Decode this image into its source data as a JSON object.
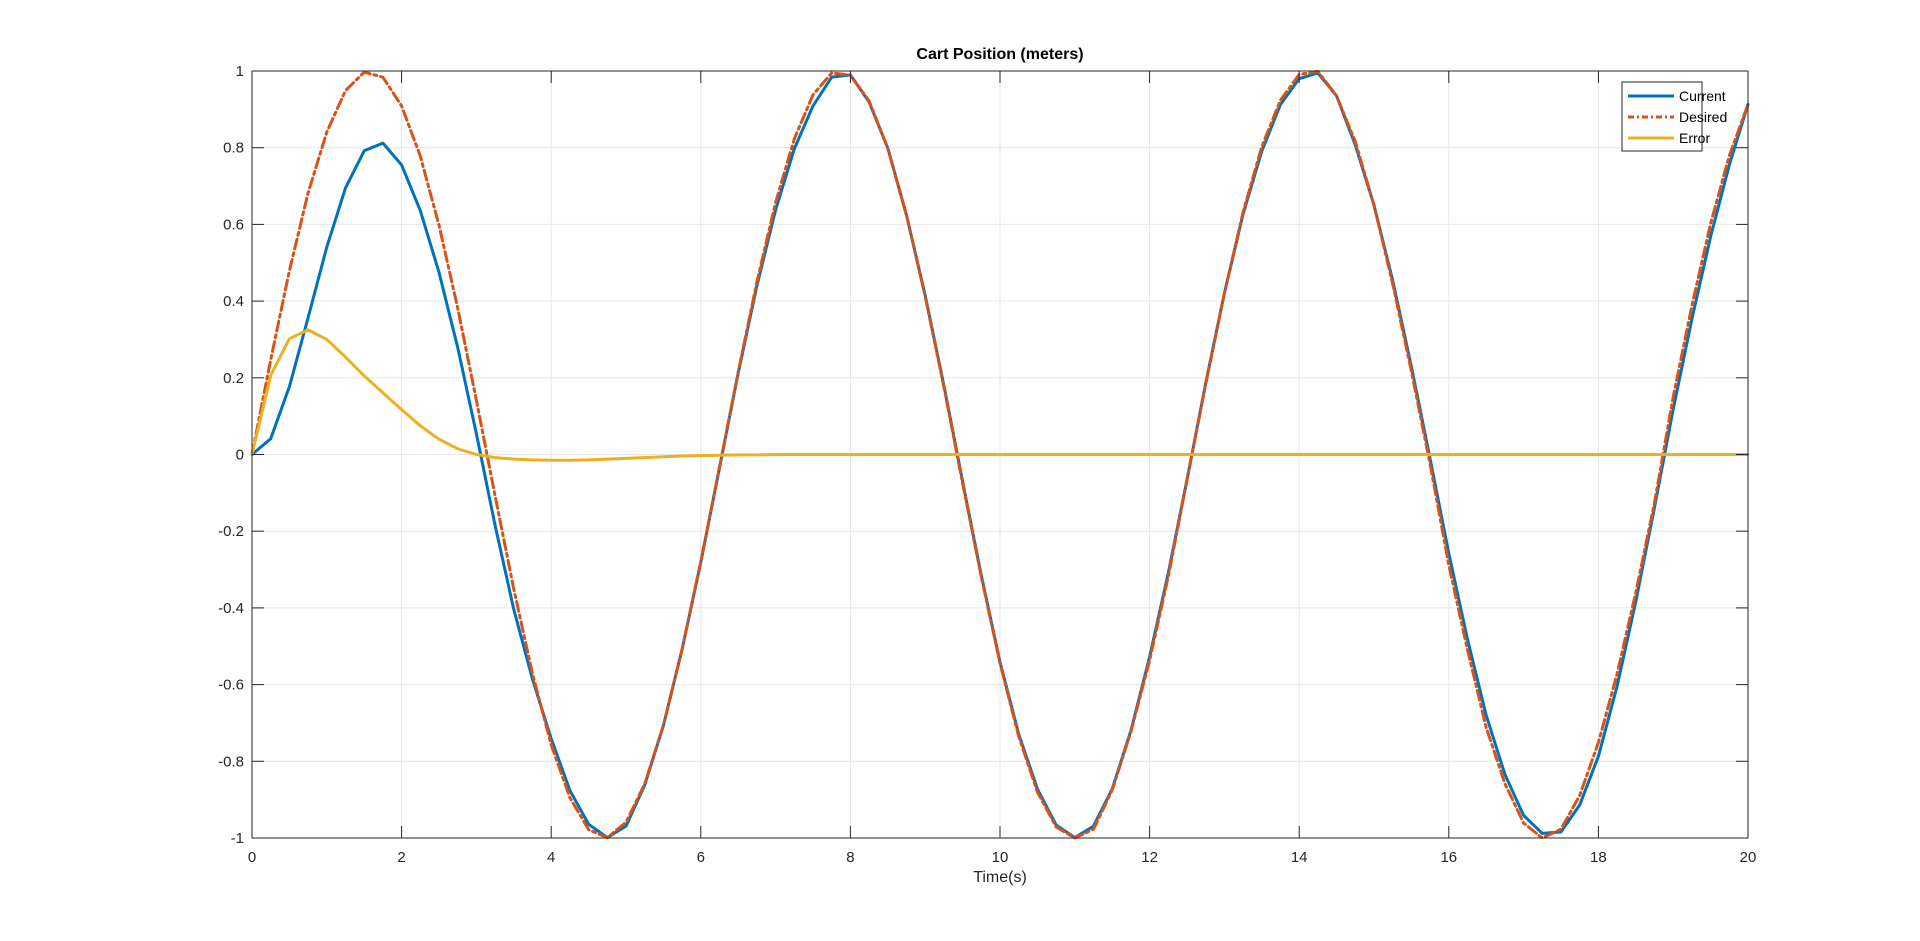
{
  "chart_data": {
    "type": "line",
    "title": "Cart Position (meters)",
    "xlabel": "Time(s)",
    "ylabel": "",
    "xlim": [
      0,
      20
    ],
    "ylim": [
      -1,
      1
    ],
    "x_ticks": [
      "0",
      "2",
      "4",
      "6",
      "8",
      "10",
      "12",
      "14",
      "16",
      "18",
      "20"
    ],
    "y_ticks": [
      "-1",
      "-0.8",
      "-0.6",
      "-0.4",
      "-0.2",
      "0",
      "0.2",
      "0.4",
      "0.6",
      "0.8",
      "1"
    ],
    "grid": true,
    "legend_position": "top-right",
    "x": [
      0,
      0.25,
      0.5,
      0.75,
      1.0,
      1.25,
      1.5,
      1.75,
      2.0,
      2.25,
      2.5,
      2.75,
      3.0,
      3.25,
      3.5,
      3.75,
      4.0,
      4.25,
      4.5,
      4.75,
      5.0,
      5.25,
      5.5,
      5.75,
      6.0,
      6.25,
      6.5,
      6.75,
      7.0,
      7.25,
      7.5,
      7.75,
      8.0,
      8.25,
      8.5,
      8.75,
      9.0,
      9.25,
      9.5,
      9.75,
      10.0,
      10.25,
      10.5,
      10.75,
      11.0,
      11.25,
      11.5,
      11.75,
      12.0,
      12.25,
      12.5,
      12.75,
      13.0,
      13.25,
      13.5,
      13.75,
      14.0,
      14.25,
      14.5,
      14.75,
      15.0,
      15.25,
      15.5,
      15.75,
      16.0,
      16.25,
      16.5,
      16.75,
      17.0,
      17.25,
      17.5,
      17.75,
      18.0,
      18.25,
      18.5,
      18.75,
      19.0,
      19.25,
      19.5,
      19.75,
      20.0
    ],
    "series": [
      {
        "name": "Current",
        "color": "#0072BD",
        "style": "solid",
        "values": [
          0.0,
          0.041,
          0.177,
          0.357,
          0.541,
          0.695,
          0.792,
          0.812,
          0.755,
          0.636,
          0.475,
          0.279,
          0.054,
          -0.185,
          -0.404,
          -0.586,
          -0.741,
          -0.876,
          -0.964,
          -0.999,
          -0.969,
          -0.862,
          -0.707,
          -0.508,
          -0.281,
          -0.035,
          0.212,
          0.44,
          0.638,
          0.797,
          0.909,
          0.984,
          0.99,
          0.919,
          0.799,
          0.624,
          0.415,
          0.18,
          -0.07,
          -0.315,
          -0.541,
          -0.729,
          -0.872,
          -0.966,
          -0.999,
          -0.969,
          -0.872,
          -0.72,
          -0.528,
          -0.309,
          -0.066,
          0.186,
          0.421,
          0.627,
          0.791,
          0.913,
          0.98,
          0.995,
          0.935,
          0.807,
          0.65,
          0.454,
          0.229,
          -0.011,
          -0.258,
          -0.482,
          -0.68,
          -0.834,
          -0.941,
          -0.988,
          -0.984,
          -0.914,
          -0.787,
          -0.604,
          -0.383,
          -0.138,
          0.118,
          0.353,
          0.568,
          0.755,
          0.913
        ]
      },
      {
        "name": "Desired",
        "color": "#D95319",
        "style": "dashdot",
        "values": [
          0.0,
          0.247,
          0.479,
          0.682,
          0.841,
          0.949,
          0.997,
          0.984,
          0.909,
          0.778,
          0.598,
          0.382,
          0.141,
          -0.108,
          -0.351,
          -0.572,
          -0.757,
          -0.895,
          -0.978,
          -0.999,
          -0.959,
          -0.859,
          -0.706,
          -0.508,
          -0.279,
          -0.033,
          0.215,
          0.45,
          0.657,
          0.823,
          0.938,
          0.995,
          0.989,
          0.922,
          0.798,
          0.624,
          0.412,
          0.176,
          -0.075,
          -0.319,
          -0.544,
          -0.735,
          -0.88,
          -0.971,
          -1.0,
          -0.977,
          -0.875,
          -0.723,
          -0.537,
          -0.318,
          -0.066,
          0.183,
          0.42,
          0.632,
          0.803,
          0.924,
          0.991,
          0.999,
          0.935,
          0.816,
          0.65,
          0.445,
          0.217,
          -0.025,
          -0.288,
          -0.509,
          -0.712,
          -0.858,
          -0.961,
          -1.0,
          -0.977,
          -0.889,
          -0.751,
          -0.572,
          -0.36,
          -0.126,
          0.15,
          0.388,
          0.602,
          0.779,
          0.913
        ]
      },
      {
        "name": "Error",
        "color": "#EDB120",
        "style": "solid",
        "values": [
          0.0,
          0.206,
          0.302,
          0.325,
          0.3,
          0.254,
          0.205,
          0.161,
          0.117,
          0.075,
          0.04,
          0.015,
          0.0,
          -0.008,
          -0.012,
          -0.014,
          -0.015,
          -0.015,
          -0.014,
          -0.012,
          -0.01,
          -0.008,
          -0.006,
          -0.004,
          -0.003,
          -0.002,
          -0.001,
          -0.001,
          0.0,
          0.0,
          0.0,
          0.0,
          0.0,
          0.0,
          0.0,
          0.0,
          0.0,
          0.0,
          0.0,
          0.0,
          0.0,
          0.0,
          0.0,
          0.0,
          0.0,
          0.0,
          0.0,
          0.0,
          0.0,
          0.0,
          0.0,
          0.0,
          0.0,
          0.0,
          0.0,
          0.0,
          0.0,
          0.0,
          0.0,
          0.0,
          0.0,
          0.0,
          0.0,
          0.0,
          0.0,
          0.0,
          0.0,
          0.0,
          0.0,
          0.0,
          0.0,
          0.0,
          0.0,
          0.0,
          0.0,
          0.0,
          0.0,
          0.0,
          0.0,
          0.0,
          0.0
        ]
      }
    ]
  }
}
